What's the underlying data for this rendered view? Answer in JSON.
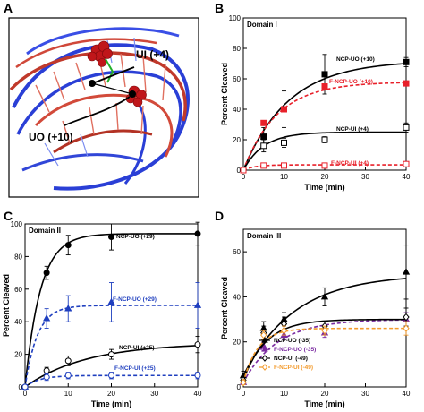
{
  "panel_a": {
    "letter": "A",
    "labels": [
      "UI (+4)",
      "UO (+10)"
    ]
  },
  "chart_data": [
    {
      "type": "line",
      "panel": "B",
      "title": "Domain I",
      "xlabel": "Time (min)",
      "ylabel": "Percent Cleaved",
      "xlim": [
        0,
        40
      ],
      "ylim": [
        0,
        100
      ],
      "xticks": [
        0,
        10,
        20,
        30,
        40
      ],
      "yticks": [
        0,
        20,
        40,
        60,
        80,
        100
      ],
      "series": [
        {
          "name": "NCP-UO (+10)",
          "color": "#000000",
          "marker": "square",
          "filled": true,
          "dashed": false,
          "x": [
            0,
            5,
            10,
            20,
            40
          ],
          "y": [
            0,
            22,
            40,
            63,
            71
          ],
          "err": [
            1,
            6,
            12,
            13,
            3
          ],
          "fit_plateau": 72,
          "fit_k": 0.09
        },
        {
          "name": "F-NCP-UO (+10)",
          "color": "#e8202a",
          "marker": "square",
          "filled": true,
          "dashed": true,
          "x": [
            0,
            5,
            10,
            20,
            40
          ],
          "y": [
            0,
            31,
            40,
            55,
            57
          ],
          "err": [
            0,
            0,
            0,
            0,
            0
          ],
          "fit_plateau": 58,
          "fit_k": 0.12
        },
        {
          "name": "NCP-UI (+4)",
          "color": "#000000",
          "marker": "square",
          "filled": false,
          "dashed": false,
          "x": [
            0,
            5,
            10,
            20,
            40
          ],
          "y": [
            0,
            16,
            18,
            20,
            28
          ],
          "err": [
            1,
            4,
            3,
            2,
            3
          ],
          "fit_plateau": 25,
          "fit_k": 0.2
        },
        {
          "name": "F-NCP-UI (+4)",
          "color": "#e8202a",
          "marker": "square",
          "filled": false,
          "dashed": true,
          "x": [
            0,
            5,
            10,
            20,
            40
          ],
          "y": [
            0,
            3,
            3,
            3,
            4
          ],
          "err": [
            0,
            1,
            1,
            1,
            1
          ],
          "fit_plateau": 3.5,
          "fit_k": 0.35
        }
      ]
    },
    {
      "type": "line",
      "panel": "C",
      "title": "Domain II",
      "xlabel": "Time (min)",
      "ylabel": "Percent Cleaved",
      "xlim": [
        0,
        40
      ],
      "ylim": [
        0,
        100
      ],
      "xticks": [
        0,
        10,
        20,
        30,
        40
      ],
      "yticks": [
        0,
        20,
        40,
        60,
        80,
        100
      ],
      "series": [
        {
          "name": "NCP-UO (+29)",
          "color": "#000000",
          "marker": "circle",
          "filled": true,
          "dashed": false,
          "x": [
            0,
            5,
            10,
            20,
            40
          ],
          "y": [
            0,
            70,
            87,
            92,
            94
          ],
          "err": [
            1,
            4,
            6,
            8,
            7
          ],
          "fit_plateau": 94,
          "fit_k": 0.28
        },
        {
          "name": "F-NCP-UO (+29)",
          "color": "#1f3fbf",
          "marker": "triangle",
          "filled": true,
          "dashed": true,
          "x": [
            0,
            5,
            10,
            20,
            40
          ],
          "y": [
            0,
            42,
            48,
            52,
            50
          ],
          "err": [
            0,
            6,
            8,
            12,
            14
          ],
          "fit_plateau": 50,
          "fit_k": 0.35
        },
        {
          "name": "NCP-UI (+25)",
          "color": "#000000",
          "marker": "circle",
          "filled": false,
          "dashed": false,
          "x": [
            0,
            5,
            10,
            20,
            40
          ],
          "y": [
            0,
            10,
            16,
            20,
            26
          ],
          "err": [
            1,
            2,
            3,
            3,
            5
          ],
          "fit_plateau": 27,
          "fit_k": 0.07
        },
        {
          "name": "F-NCP-UI (+25)",
          "color": "#1f3fbf",
          "marker": "circle",
          "filled": false,
          "dashed": true,
          "x": [
            0,
            5,
            10,
            20,
            40
          ],
          "y": [
            0,
            6,
            7,
            7,
            7
          ],
          "err": [
            0,
            2,
            2,
            2,
            2
          ],
          "fit_plateau": 7,
          "fit_k": 0.3
        }
      ]
    },
    {
      "type": "line",
      "panel": "D",
      "title": "Domain III",
      "xlabel": "Time (min)",
      "ylabel": "Percent Cleaved",
      "xlim": [
        0,
        40
      ],
      "ylim": [
        0,
        70
      ],
      "xticks": [
        0,
        10,
        20,
        30,
        40
      ],
      "yticks": [
        0,
        20,
        40,
        60
      ],
      "legend": "lower-right",
      "series": [
        {
          "name": "NCP-UO (-35)",
          "color": "#000000",
          "marker": "triangle",
          "filled": true,
          "dashed": false,
          "x": [
            0,
            5,
            10,
            20,
            40
          ],
          "y": [
            5,
            26,
            30,
            40,
            51
          ],
          "err": [
            2,
            3,
            3,
            4,
            12
          ],
          "fit_plateau": 50,
          "fit_k": 0.08
        },
        {
          "name": "F-NCP-UO (-35)",
          "color": "#7a2aa0",
          "marker": "triangle",
          "filled": true,
          "dashed": true,
          "x": [
            0,
            5,
            10,
            20,
            40
          ],
          "y": [
            2,
            18,
            23,
            24,
            30
          ],
          "err": [
            1,
            2,
            2,
            2,
            3
          ],
          "fit_plateau": 30,
          "fit_k": 0.12
        },
        {
          "name": "NCP-UI (-49)",
          "color": "#000000",
          "marker": "diamond",
          "filled": false,
          "dashed": false,
          "x": [
            0,
            5,
            10,
            20,
            40
          ],
          "y": [
            3,
            24,
            28,
            27,
            31
          ],
          "err": [
            1,
            3,
            3,
            2,
            4
          ],
          "fit_plateau": 30,
          "fit_k": 0.18
        },
        {
          "name": "F-NCP-UI (-49)",
          "color": "#f39a2b",
          "marker": "diamond",
          "filled": false,
          "dashed": true,
          "x": [
            0,
            5,
            10,
            20,
            40
          ],
          "y": [
            2,
            23,
            25,
            25,
            26
          ],
          "err": [
            1,
            2,
            2,
            2,
            3
          ],
          "fit_plateau": 26,
          "fit_k": 0.28
        }
      ]
    }
  ]
}
